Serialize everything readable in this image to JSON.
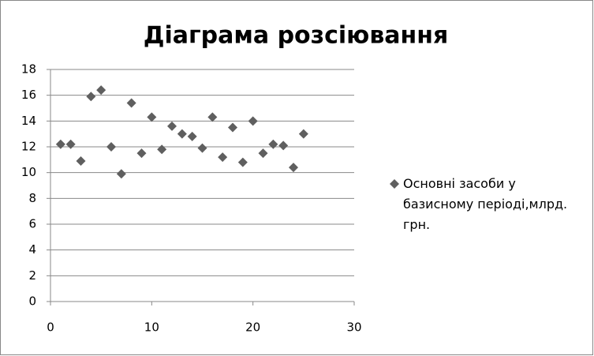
{
  "chart_data": {
    "type": "scatter",
    "title": "Діаграма розсіювання",
    "series": [
      {
        "name": "Основні засоби у базисному періоді,млрд. грн.",
        "color": "#5f5f5f",
        "x": [
          1,
          2,
          3,
          4,
          5,
          6,
          7,
          8,
          9,
          10,
          11,
          12,
          13,
          14,
          15,
          16,
          17,
          18,
          19,
          20,
          21,
          22,
          23,
          24,
          25
        ],
        "values": [
          12.2,
          12.2,
          10.9,
          15.9,
          16.4,
          12.0,
          9.9,
          15.4,
          11.5,
          14.3,
          11.8,
          13.6,
          13.0,
          12.8,
          11.9,
          14.3,
          11.2,
          13.5,
          10.8,
          14.0,
          11.5,
          12.2,
          12.1,
          10.4,
          13.0
        ]
      }
    ],
    "xlim": [
      0,
      30
    ],
    "xticks": [
      0,
      10,
      20,
      30
    ],
    "ylim": [
      0,
      18
    ],
    "yticks": [
      0,
      2,
      4,
      6,
      8,
      10,
      12,
      14,
      16,
      18
    ],
    "grid": true,
    "legend": "right"
  }
}
